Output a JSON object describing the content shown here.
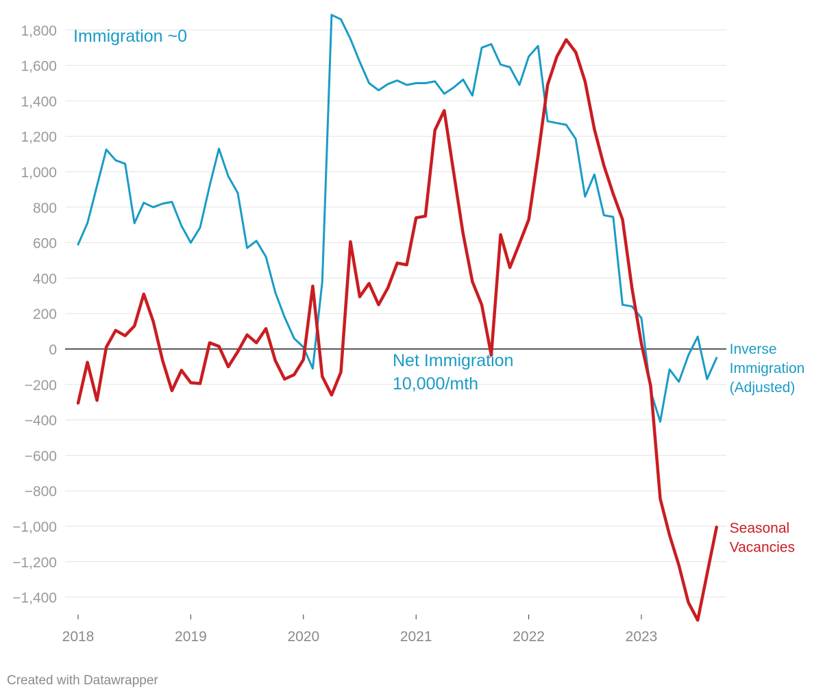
{
  "chart_data": {
    "type": "line",
    "title": "",
    "xlabel": "",
    "ylabel": "",
    "ylim": [
      -1530,
      1900
    ],
    "y_ticks": [
      1800,
      1600,
      1400,
      1200,
      1000,
      800,
      600,
      400,
      200,
      0,
      -200,
      -400,
      -600,
      -800,
      -1000,
      -1200,
      -1400
    ],
    "y_tick_labels": [
      "1,800",
      "1,600",
      "1,400",
      "1,200",
      "1,000",
      "800",
      "600",
      "400",
      "200",
      "0",
      "−200",
      "−400",
      "−600",
      "−800",
      "−1,000",
      "−1,200",
      "−1,400"
    ],
    "x_ticks": [
      2018,
      2019,
      2020,
      2021,
      2022,
      2023
    ],
    "x_tick_labels": [
      "2018",
      "2019",
      "2020",
      "2021",
      "2022",
      "2023"
    ],
    "xlim": [
      2018,
      2023.75
    ],
    "zero_line": true,
    "grid": true,
    "series": [
      {
        "name": "Inverse Immigration (Adjusted)",
        "label_lines": [
          "Inverse",
          "Immigration",
          "(Adjusted)"
        ],
        "color": "#1a9bc6",
        "x": [
          2018.0,
          2018.083,
          2018.167,
          2018.25,
          2018.333,
          2018.417,
          2018.5,
          2018.583,
          2018.667,
          2018.75,
          2018.833,
          2018.917,
          2019.0,
          2019.083,
          2019.167,
          2019.25,
          2019.333,
          2019.417,
          2019.5,
          2019.583,
          2019.667,
          2019.75,
          2019.833,
          2019.917,
          2020.0,
          2020.083,
          2020.167,
          2020.25,
          2020.333,
          2020.417,
          2020.5,
          2020.583,
          2020.667,
          2020.75,
          2020.833,
          2020.917,
          2021.0,
          2021.083,
          2021.167,
          2021.25,
          2021.333,
          2021.417,
          2021.5,
          2021.583,
          2021.667,
          2021.75,
          2021.833,
          2021.917,
          2022.0,
          2022.083,
          2022.167,
          2022.25,
          2022.333,
          2022.417,
          2022.5,
          2022.583,
          2022.667,
          2022.75,
          2022.833,
          2022.917,
          2023.0,
          2023.083,
          2023.167,
          2023.25,
          2023.333,
          2023.417,
          2023.5,
          2023.583,
          2023.667
        ],
        "values": [
          590,
          710,
          920,
          1125,
          1065,
          1045,
          710,
          825,
          800,
          820,
          830,
          695,
          600,
          685,
          920,
          1130,
          975,
          880,
          570,
          610,
          520,
          320,
          180,
          60,
          10,
          -110,
          380,
          1885,
          1860,
          1750,
          1620,
          1500,
          1460,
          1495,
          1515,
          1490,
          1500,
          1500,
          1510,
          1440,
          1475,
          1520,
          1430,
          1700,
          1720,
          1605,
          1590,
          1490,
          1650,
          1710,
          1285,
          1275,
          1265,
          1185,
          860,
          985,
          755,
          745,
          250,
          240,
          175,
          -240,
          -410,
          -115,
          -185,
          -35,
          70,
          -170,
          -50
        ]
      },
      {
        "name": "Seasonal Vacancies",
        "label_lines": [
          "Seasonal",
          "Vacancies"
        ],
        "color": "#c91d22",
        "x": [
          2018.0,
          2018.083,
          2018.167,
          2018.25,
          2018.333,
          2018.417,
          2018.5,
          2018.583,
          2018.667,
          2018.75,
          2018.833,
          2018.917,
          2019.0,
          2019.083,
          2019.167,
          2019.25,
          2019.333,
          2019.417,
          2019.5,
          2019.583,
          2019.667,
          2019.75,
          2019.833,
          2019.917,
          2020.0,
          2020.083,
          2020.167,
          2020.25,
          2020.333,
          2020.417,
          2020.5,
          2020.583,
          2020.667,
          2020.75,
          2020.833,
          2020.917,
          2021.0,
          2021.083,
          2021.167,
          2021.25,
          2021.333,
          2021.417,
          2021.5,
          2021.583,
          2021.667,
          2021.75,
          2021.833,
          2021.917,
          2022.0,
          2022.083,
          2022.167,
          2022.25,
          2022.333,
          2022.417,
          2022.5,
          2022.583,
          2022.667,
          2022.75,
          2022.833,
          2022.917,
          2023.0,
          2023.083,
          2023.167,
          2023.25,
          2023.333,
          2023.417,
          2023.5,
          2023.583,
          2023.667
        ],
        "values": [
          -305,
          -75,
          -290,
          10,
          105,
          75,
          130,
          310,
          155,
          -65,
          -235,
          -120,
          -190,
          -195,
          35,
          15,
          -100,
          -15,
          80,
          35,
          115,
          -65,
          -170,
          -145,
          -60,
          355,
          -155,
          -260,
          -130,
          605,
          295,
          370,
          250,
          345,
          485,
          475,
          740,
          750,
          1235,
          1345,
          1000,
          650,
          380,
          250,
          -35,
          645,
          460,
          595,
          730,
          1090,
          1490,
          1650,
          1745,
          1675,
          1510,
          1240,
          1035,
          875,
          730,
          340,
          30,
          -210,
          -845,
          -1050,
          -1220,
          -1430,
          -1530,
          -1270,
          -1005
        ]
      }
    ],
    "annotations": [
      {
        "id": "immigration-zero",
        "text": "Immigration ~0"
      },
      {
        "id": "net-immigration",
        "lines": [
          "Net Immigration",
          "10,000/mth"
        ]
      }
    ]
  },
  "footer": {
    "credit": "Created with Datawrapper"
  },
  "colors": {
    "grid": "#e2e2e2",
    "zero_line": "#222222",
    "tick_text": "#9a9a9a",
    "annotation": "#1a9bc6"
  }
}
